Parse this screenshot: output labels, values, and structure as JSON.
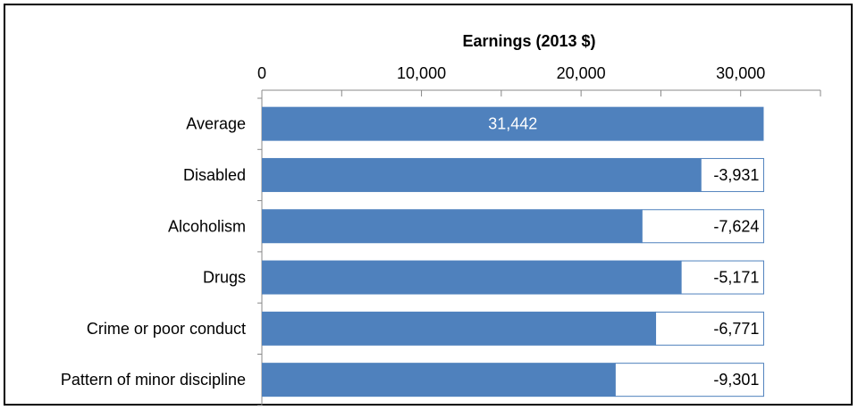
{
  "chart_data": {
    "type": "bar",
    "orientation": "horizontal",
    "stacked": true,
    "xlabel": "Earnings (2013 $)",
    "xlim": [
      0,
      35000
    ],
    "x_ticks": [
      {
        "value": 0,
        "label": "0"
      },
      {
        "value": 10000,
        "label": "10,000"
      },
      {
        "value": 20000,
        "label": "20,000"
      },
      {
        "value": 30000,
        "label": "30,000"
      }
    ],
    "x_minor_ticks": [
      5000,
      15000,
      25000,
      35000
    ],
    "axis_position": "top",
    "grid": false,
    "legend": "none",
    "total": 31442,
    "categories": [
      "Average",
      "Disabled",
      "Alcoholism",
      "Drugs",
      "Crime or poor conduct",
      "Pattern of minor discipline"
    ],
    "series": [
      {
        "values": [
          31442,
          27511,
          23818,
          26271,
          24671,
          22141
        ],
        "color": "#4f81bd"
      },
      {
        "values": [
          0,
          3931,
          7624,
          5171,
          6771,
          9301
        ],
        "color": "#ffffff",
        "border": "#4f81bd"
      }
    ],
    "data_labels": [
      "31,442",
      "-3,931",
      "-7,624",
      "-5,171",
      "-6,771",
      "-9,301"
    ]
  }
}
